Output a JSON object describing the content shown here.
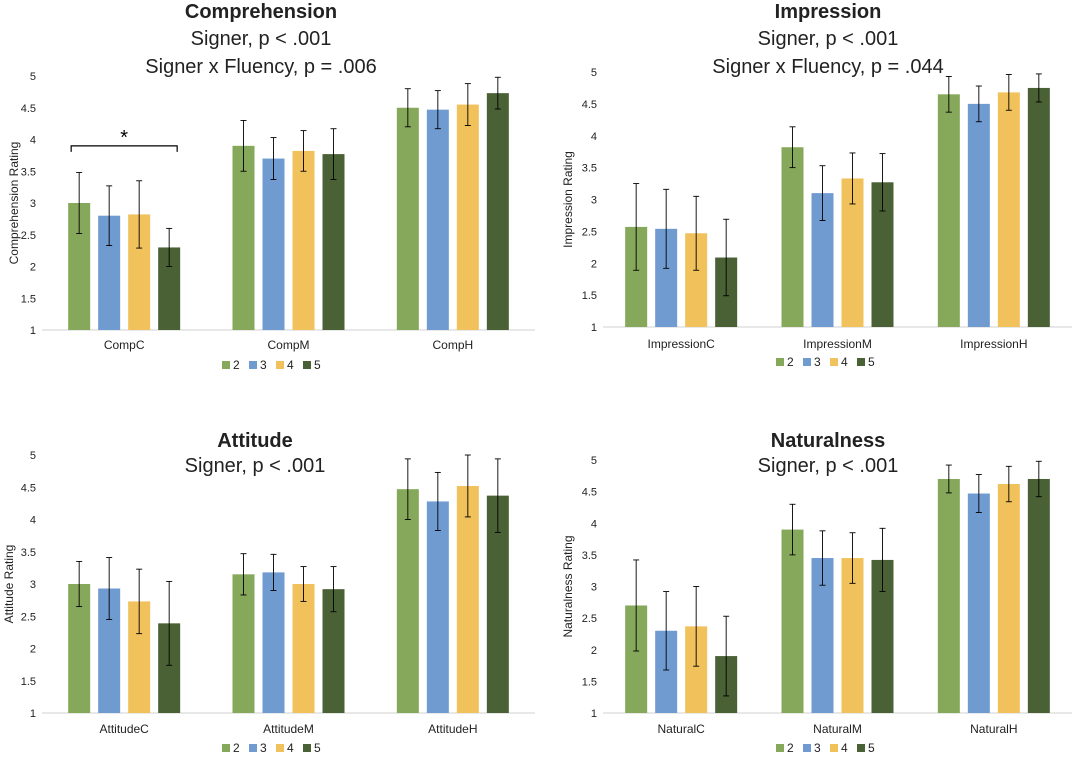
{
  "colors": {
    "2": "#86a85a",
    "3": "#6f9bd0",
    "4": "#f1c15b",
    "5": "#4a6135",
    "axis": "#d0d0d0",
    "text": "#222222",
    "errbar": "#000000"
  },
  "chart_data": [
    {
      "type": "bar",
      "title": "Comprehension",
      "subtitles": [
        "Signer, p < .001",
        "Signer x Fluency, p = .006"
      ],
      "ylabel": "Comprehension Rating",
      "ylim": [
        1,
        5
      ],
      "yticks": [
        "1",
        "1.5",
        "2",
        "2.5",
        "3",
        "3.5",
        "4",
        "4.5",
        "5"
      ],
      "categories": [
        "CompC",
        "CompM",
        "CompH"
      ],
      "legend_position": "bottom",
      "series": [
        {
          "name": "2",
          "values": [
            3.0,
            3.9,
            4.5
          ],
          "err": [
            0.48,
            0.4,
            0.3
          ]
        },
        {
          "name": "3",
          "values": [
            2.8,
            3.7,
            4.47
          ],
          "err": [
            0.47,
            0.33,
            0.3
          ]
        },
        {
          "name": "4",
          "values": [
            2.82,
            3.82,
            4.55
          ],
          "err": [
            0.53,
            0.32,
            0.33
          ]
        },
        {
          "name": "5",
          "values": [
            2.3,
            3.77,
            4.73
          ],
          "err": [
            0.3,
            0.4,
            0.25
          ]
        }
      ],
      "annotation": {
        "text": "*",
        "category": "CompC",
        "from_series": 0,
        "to_series": 3,
        "y": 3.9
      }
    },
    {
      "type": "bar",
      "title": "Impression",
      "subtitles": [
        "Signer, p < .001",
        "Signer x Fluency, p = .044"
      ],
      "ylabel": "Impression Rating",
      "ylim": [
        1,
        5
      ],
      "yticks": [
        "1",
        "1.5",
        "2",
        "2.5",
        "3",
        "3.5",
        "4",
        "4.5",
        "5"
      ],
      "categories": [
        "ImpressionC",
        "ImpressionM",
        "ImpressionH"
      ],
      "legend_position": "bottom",
      "series": [
        {
          "name": "2",
          "values": [
            2.57,
            3.82,
            4.65
          ],
          "err": [
            0.68,
            0.32,
            0.28
          ]
        },
        {
          "name": "3",
          "values": [
            2.54,
            3.1,
            4.5
          ],
          "err": [
            0.62,
            0.43,
            0.28
          ]
        },
        {
          "name": "4",
          "values": [
            2.47,
            3.33,
            4.68
          ],
          "err": [
            0.58,
            0.4,
            0.28
          ]
        },
        {
          "name": "5",
          "values": [
            2.09,
            3.27,
            4.75
          ],
          "err": [
            0.6,
            0.45,
            0.22
          ]
        }
      ]
    },
    {
      "type": "bar",
      "title": "Attitude",
      "subtitles": [
        "Signer, p < .001"
      ],
      "ylabel": "Attitude Rating",
      "ylim": [
        1,
        5
      ],
      "yticks": [
        "1",
        "1.5",
        "2",
        "2.5",
        "3",
        "3.5",
        "4",
        "4.5",
        "5"
      ],
      "categories": [
        "AttitudeC",
        "AttitudeM",
        "AttitudeH"
      ],
      "legend_position": "bottom",
      "series": [
        {
          "name": "2",
          "values": [
            3.0,
            3.15,
            4.47
          ],
          "err": [
            0.35,
            0.32,
            0.47
          ]
        },
        {
          "name": "3",
          "values": [
            2.93,
            3.18,
            4.28
          ],
          "err": [
            0.48,
            0.28,
            0.45
          ]
        },
        {
          "name": "4",
          "values": [
            2.73,
            3.0,
            4.52
          ],
          "err": [
            0.5,
            0.27,
            0.48
          ]
        },
        {
          "name": "5",
          "values": [
            2.39,
            2.92,
            4.37
          ],
          "err": [
            0.65,
            0.35,
            0.57
          ]
        }
      ]
    },
    {
      "type": "bar",
      "title": "Naturalness",
      "subtitles": [
        "Signer, p < .001"
      ],
      "ylabel": "Naturalness Rating",
      "ylim": [
        1,
        5
      ],
      "yticks": [
        "1",
        "1.5",
        "2",
        "2.5",
        "3",
        "3.5",
        "4",
        "4.5",
        "5"
      ],
      "categories": [
        "NaturalC",
        "NaturalM",
        "NaturalH"
      ],
      "legend_position": "bottom",
      "series": [
        {
          "name": "2",
          "values": [
            2.7,
            3.9,
            4.7
          ],
          "err": [
            0.72,
            0.4,
            0.22
          ]
        },
        {
          "name": "3",
          "values": [
            2.3,
            3.45,
            4.47
          ],
          "err": [
            0.62,
            0.43,
            0.3
          ]
        },
        {
          "name": "4",
          "values": [
            2.37,
            3.45,
            4.62
          ],
          "err": [
            0.63,
            0.4,
            0.28
          ]
        },
        {
          "name": "5",
          "values": [
            1.9,
            3.42,
            4.7
          ],
          "err": [
            0.63,
            0.5,
            0.28
          ]
        }
      ]
    }
  ]
}
